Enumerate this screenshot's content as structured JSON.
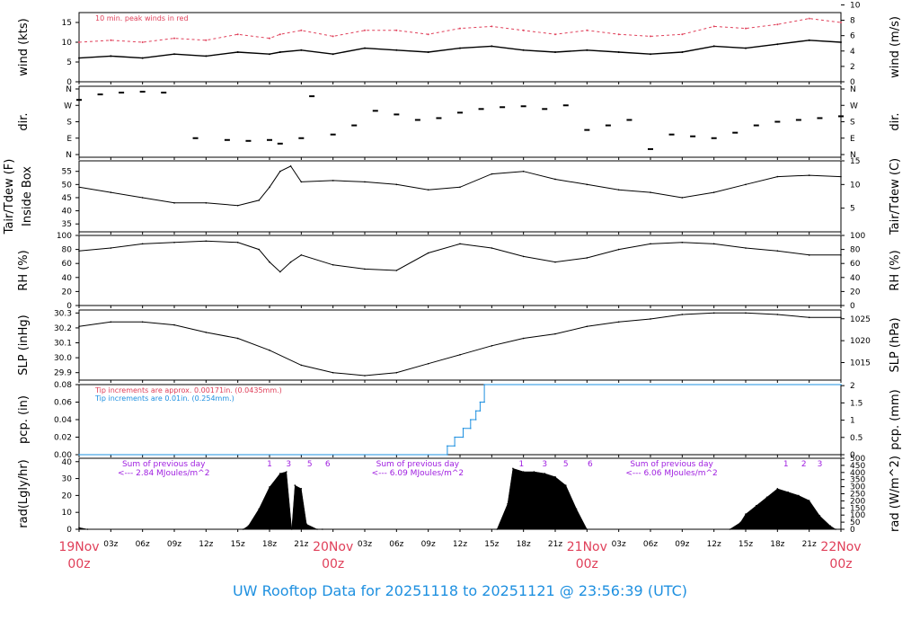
{
  "title": "UW Rooftop Data for 20251118  to  20251121 @ 23:56:39  (UTC)",
  "colors": {
    "accent_red": "#e0405a",
    "accent_blue": "#1e90e0",
    "accent_purple": "#a020e0",
    "trace": "#000000"
  },
  "time_axis": {
    "hour_labels": [
      "03z",
      "06z",
      "09z",
      "12z",
      "15z",
      "18z",
      "21z"
    ],
    "day_labels": [
      {
        "date": "19Nov",
        "time": "00z",
        "hour": 0
      },
      {
        "date": "20Nov",
        "time": "00z",
        "hour": 24
      },
      {
        "date": "21Nov",
        "time": "00z",
        "hour": 48
      },
      {
        "date": "22Nov",
        "time": "00z",
        "hour": 72
      }
    ]
  },
  "chart_data": [
    {
      "type": "line",
      "id": "wind",
      "ylabel_left": "wind (kts)",
      "ylabel_right": "wind (m/s)",
      "left_ticks": [
        "0",
        "5",
        "10",
        "15"
      ],
      "left_range": [
        0,
        17.5
      ],
      "right_ticks": [
        "0",
        "2",
        "4",
        "6",
        "8",
        "10"
      ],
      "right_range": [
        0,
        9
      ],
      "annotation": "10 min. peak winds in red",
      "series": [
        {
          "role": "mean",
          "x": [
            0,
            3,
            6,
            9,
            12,
            15,
            18,
            19,
            21,
            24,
            27,
            30,
            33,
            36,
            39,
            42,
            45,
            48,
            51,
            54,
            57,
            60,
            63,
            66,
            69,
            72
          ],
          "values": [
            6,
            6.5,
            6,
            7,
            6.5,
            7.5,
            7,
            7.5,
            8,
            7,
            8.5,
            8,
            7.5,
            8.5,
            9,
            8,
            7.5,
            8,
            7.5,
            7,
            7.5,
            9,
            8.5,
            9.5,
            10.5,
            10
          ]
        },
        {
          "role": "peak",
          "x": [
            0,
            3,
            6,
            9,
            12,
            15,
            18,
            19,
            21,
            24,
            27,
            30,
            33,
            36,
            39,
            42,
            45,
            48,
            51,
            54,
            57,
            60,
            63,
            66,
            69,
            72
          ],
          "values": [
            10,
            10.5,
            10,
            11,
            10.5,
            12,
            11,
            12,
            13,
            11.5,
            13,
            13,
            12,
            13.5,
            14,
            13,
            12,
            13,
            12,
            11.5,
            12,
            14,
            13.5,
            14.5,
            16,
            15
          ]
        }
      ]
    },
    {
      "type": "scatter",
      "id": "dir",
      "ylabel_left": "dir.",
      "ylabel_right": "dir.",
      "left_ticks": [
        "N",
        "E",
        "S",
        "W",
        "N"
      ],
      "right_ticks": [
        "N",
        "E",
        "S",
        "W",
        "N"
      ],
      "range": [
        0,
        360
      ],
      "x": [
        0,
        2,
        4,
        6,
        8,
        11,
        14,
        16,
        18,
        19,
        21,
        22,
        24,
        26,
        28,
        30,
        32,
        34,
        36,
        38,
        40,
        42,
        44,
        46,
        48,
        50,
        52,
        54,
        56,
        58,
        60,
        62,
        64,
        66,
        68,
        70,
        72
      ],
      "values": [
        300,
        330,
        340,
        345,
        340,
        90,
        80,
        75,
        80,
        60,
        90,
        320,
        110,
        160,
        240,
        220,
        190,
        200,
        230,
        250,
        260,
        265,
        250,
        270,
        135,
        160,
        190,
        30,
        110,
        100,
        90,
        120,
        160,
        180,
        190,
        200,
        210
      ]
    },
    {
      "type": "line",
      "id": "temp",
      "ylabel_left": [
        "Tair/Tdew (F)",
        "Inside Box"
      ],
      "ylabel_right": "Tair/Tdew (C)",
      "left_ticks": [
        "35",
        "40",
        "45",
        "50",
        "55"
      ],
      "left_range": [
        32,
        59
      ],
      "right_ticks": [
        "5",
        "10",
        "15"
      ],
      "right_range": [
        0,
        15
      ],
      "x": [
        0,
        3,
        6,
        9,
        12,
        15,
        17,
        18,
        19,
        20,
        21,
        24,
        27,
        30,
        33,
        36,
        39,
        42,
        45,
        48,
        51,
        54,
        57,
        60,
        63,
        66,
        69,
        72
      ],
      "values": [
        49,
        47,
        45,
        43,
        43,
        42,
        44,
        49,
        55,
        57,
        51,
        51.5,
        51,
        50,
        48,
        49,
        54,
        55,
        52,
        50,
        48,
        47,
        45,
        47,
        50,
        53,
        53.5,
        53
      ]
    },
    {
      "type": "line",
      "id": "rh",
      "ylabel_left": "RH (%)",
      "ylabel_right": "RH (%)",
      "left_ticks": [
        "0",
        "20",
        "40",
        "60",
        "80",
        "100"
      ],
      "left_range": [
        0,
        100
      ],
      "right_ticks": [
        "0",
        "20",
        "40",
        "60",
        "80",
        "100"
      ],
      "right_range": [
        0,
        100
      ],
      "x": [
        0,
        3,
        6,
        9,
        12,
        15,
        17,
        18,
        19,
        20,
        21,
        24,
        27,
        30,
        33,
        36,
        39,
        42,
        45,
        48,
        51,
        54,
        57,
        60,
        63,
        66,
        69,
        72
      ],
      "values": [
        78,
        82,
        88,
        90,
        92,
        90,
        80,
        62,
        48,
        62,
        72,
        58,
        52,
        50,
        75,
        88,
        82,
        70,
        62,
        68,
        80,
        88,
        90,
        88,
        82,
        78,
        72,
        72
      ]
    },
    {
      "type": "line",
      "id": "slp",
      "ylabel_left": "SLP (inHg)",
      "ylabel_right": "SLP (hPa)",
      "left_ticks": [
        "29.9",
        "30.0",
        "30.1",
        "30.2",
        "30.3"
      ],
      "left_range": [
        29.85,
        30.32
      ],
      "right_ticks": [
        "1015",
        "1020",
        "1025"
      ],
      "right_range": [
        1011,
        1027
      ],
      "x": [
        0,
        3,
        6,
        9,
        12,
        15,
        18,
        21,
        24,
        27,
        30,
        33,
        36,
        39,
        42,
        45,
        48,
        51,
        54,
        57,
        60,
        63,
        66,
        69,
        72
      ],
      "values": [
        30.21,
        30.24,
        30.24,
        30.22,
        30.17,
        30.13,
        30.05,
        29.95,
        29.9,
        29.88,
        29.9,
        29.96,
        30.02,
        30.08,
        30.13,
        30.16,
        30.21,
        30.24,
        30.26,
        30.29,
        30.3,
        30.3,
        30.29,
        30.27,
        30.27
      ]
    },
    {
      "type": "line",
      "id": "pcp",
      "ylabel_left": "pcp. (in)",
      "ylabel_right": "pcp. (mm)",
      "left_ticks": [
        "0.00",
        "0.02",
        "0.04",
        "0.06",
        "0.08"
      ],
      "left_range": [
        0,
        0.08
      ],
      "right_ticks": [
        "0",
        "0.5",
        "1",
        "1.5",
        "2"
      ],
      "right_range": [
        0,
        2.03
      ],
      "notes": [
        "Tip increments are approx. 0.00171in. (0.0435mm.)",
        "Tip increments are 0.01in. (0.254mm.)"
      ],
      "x": [
        0,
        34.8,
        34.8,
        35.5,
        35.5,
        36.3,
        36.3,
        37,
        37,
        37.5,
        37.5,
        37.9,
        37.9,
        38.3,
        38.3,
        72
      ],
      "values": [
        0,
        0,
        0.01,
        0.01,
        0.02,
        0.02,
        0.03,
        0.03,
        0.04,
        0.04,
        0.05,
        0.05,
        0.06,
        0.06,
        0.08,
        0.08
      ]
    },
    {
      "type": "area",
      "id": "rad",
      "ylabel_left": "rad(Lgly/hr)",
      "ylabel_right": "rad (W/m^2)",
      "left_ticks": [
        "0",
        "10",
        "20",
        "30",
        "40"
      ],
      "left_range": [
        0,
        42
      ],
      "right_ticks": [
        "0",
        "50",
        "100",
        "150",
        "200",
        "250",
        "300",
        "350",
        "400",
        "450",
        "500"
      ],
      "right_range": [
        0,
        500
      ],
      "x": [
        0,
        0.8,
        15.5,
        16,
        17,
        18,
        19,
        19.6,
        20.1,
        20.4,
        21,
        21.5,
        22.5,
        23,
        39.5,
        40.5,
        41,
        42,
        43,
        44,
        45,
        46,
        47,
        48,
        61.5,
        62.5,
        63,
        64,
        65,
        66,
        67,
        68,
        69,
        70,
        71,
        71.5
      ],
      "values": [
        1,
        0,
        0,
        2,
        12,
        25,
        33,
        34,
        0,
        26,
        24,
        3,
        0,
        0,
        0,
        15,
        36,
        34,
        34,
        33,
        31,
        26,
        12,
        0,
        0,
        4,
        9,
        14,
        19,
        24,
        22,
        20,
        17,
        8,
        2,
        0
      ],
      "daily_notes": [
        {
          "hour": 8,
          "line1": "Sum of previous day",
          "line2": "<--- 2.84 MJoules/m^2"
        },
        {
          "hour": 32,
          "line1": "Sum of previous day",
          "line2": "<--- 6.09 MJoules/m^2"
        },
        {
          "hour": 56,
          "line1": "Sum of previous day",
          "line2": "<--- 6.06 MJoules/m^2"
        }
      ],
      "hour_marks": [
        {
          "hour": 18,
          "label": "1"
        },
        {
          "hour": 19.8,
          "label": "3"
        },
        {
          "hour": 21.8,
          "label": "5"
        },
        {
          "hour": 23.5,
          "label": "6"
        },
        {
          "hour": 41.8,
          "label": "1"
        },
        {
          "hour": 44,
          "label": "3"
        },
        {
          "hour": 46,
          "label": "5"
        },
        {
          "hour": 48.3,
          "label": "6"
        },
        {
          "hour": 66.8,
          "label": "1"
        },
        {
          "hour": 68.5,
          "label": "2"
        },
        {
          "hour": 70,
          "label": "3"
        }
      ]
    }
  ]
}
